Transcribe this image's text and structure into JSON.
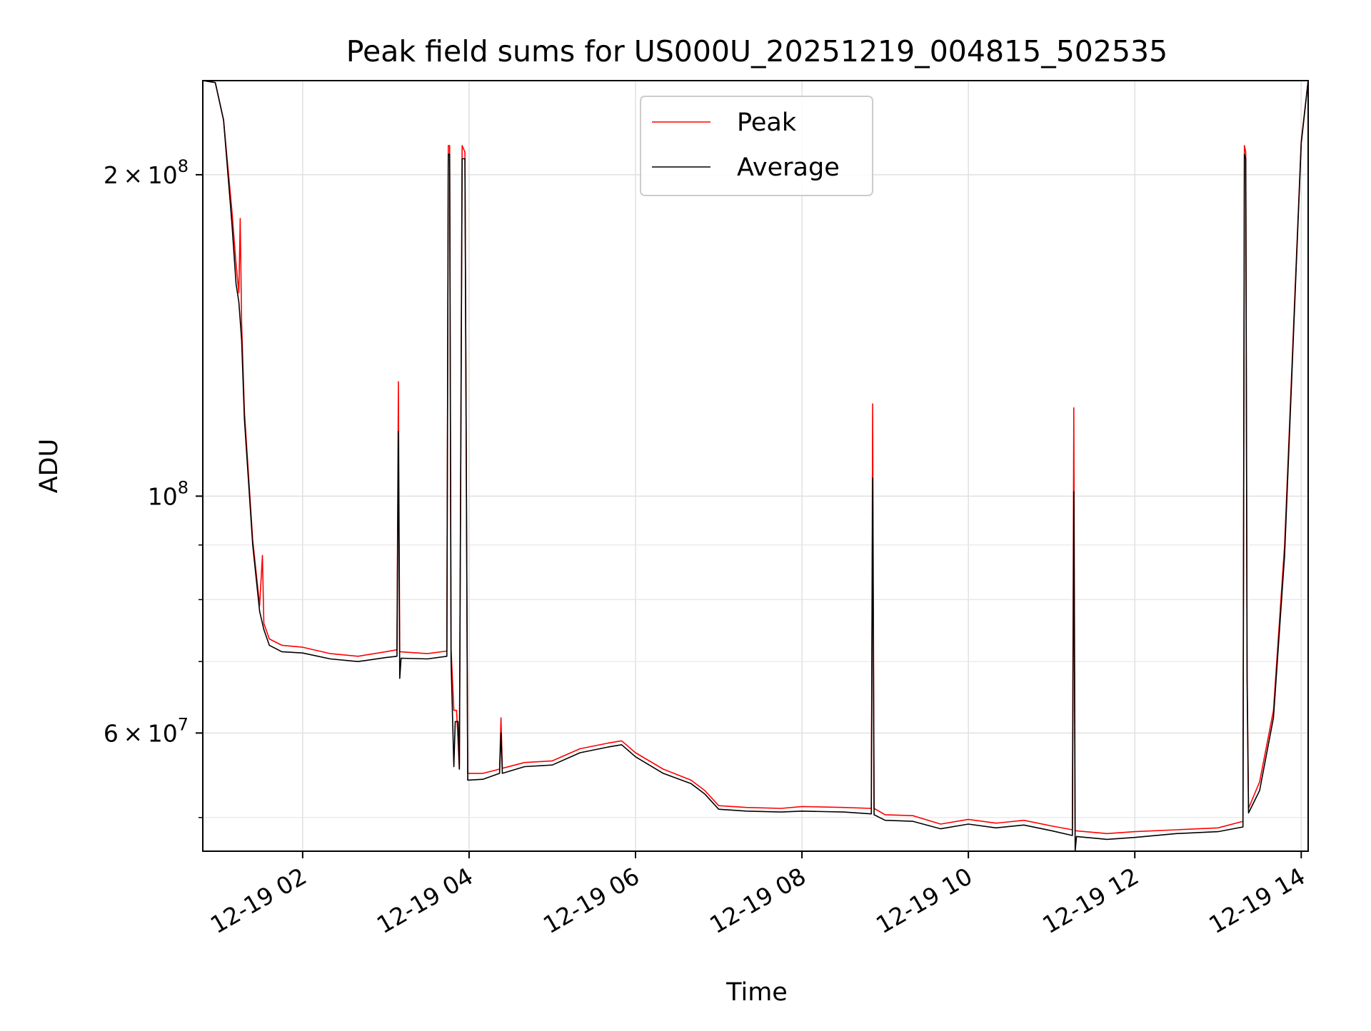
{
  "chart_data": {
    "type": "line",
    "title": "Peak field sums for US000U_20251219_004815_502535",
    "xlabel": "Time",
    "ylabel": "ADU",
    "x_scale": "time",
    "y_scale": "log",
    "xlim": [
      "2025-12-19 00:48",
      "2025-12-19 14:05"
    ],
    "ylim": [
      46500000,
      245000000
    ],
    "grid": true,
    "legend": {
      "position": "upper-center",
      "entries": [
        "Peak",
        "Average"
      ]
    },
    "x_ticks": [
      {
        "value": "2025-12-19 02:00",
        "label": "12-19 02"
      },
      {
        "value": "2025-12-19 04:00",
        "label": "12-19 04"
      },
      {
        "value": "2025-12-19 06:00",
        "label": "12-19 06"
      },
      {
        "value": "2025-12-19 08:00",
        "label": "12-19 08"
      },
      {
        "value": "2025-12-19 10:00",
        "label": "12-19 10"
      },
      {
        "value": "2025-12-19 12:00",
        "label": "12-19 12"
      },
      {
        "value": "2025-12-19 14:00",
        "label": "12-19 14"
      }
    ],
    "y_major_ticks": [
      {
        "value": 100000000,
        "base": "10",
        "exp": "8"
      },
      {
        "value": 200000000,
        "mant": "2",
        "times": "×",
        "base": "10",
        "exp": "8"
      },
      {
        "value": 60000000,
        "mant": "6",
        "times": "×",
        "base": "10",
        "exp": "7"
      }
    ],
    "y_minor_ticks": [
      50000000,
      70000000,
      80000000,
      90000000
    ],
    "series": [
      {
        "name": "Peak",
        "color": "#ff0000",
        "points": [
          [
            "2025-12-19 00:48",
            245000000
          ],
          [
            "2025-12-19 00:57",
            244000000
          ],
          [
            "2025-12-19 01:03",
            225000000
          ],
          [
            "2025-12-19 01:09",
            185000000
          ],
          [
            "2025-12-19 01:12",
            165000000
          ],
          [
            "2025-12-19 01:14",
            155000000
          ],
          [
            "2025-12-19 01:15",
            182000000
          ],
          [
            "2025-12-19 01:16",
            145000000
          ],
          [
            "2025-12-19 01:18",
            120000000
          ],
          [
            "2025-12-19 01:24",
            91000000
          ],
          [
            "2025-12-19 01:29",
            79000000
          ],
          [
            "2025-12-19 01:31",
            88000000
          ],
          [
            "2025-12-19 01:32",
            76000000
          ],
          [
            "2025-12-19 01:36",
            73500000
          ],
          [
            "2025-12-19 01:45",
            72500000
          ],
          [
            "2025-12-19 02:00",
            72200000
          ],
          [
            "2025-12-19 02:20",
            71200000
          ],
          [
            "2025-12-19 02:40",
            70800000
          ],
          [
            "2025-12-19 03:00",
            71500000
          ],
          [
            "2025-12-19 03:08",
            71800000
          ],
          [
            "2025-12-19 03:09",
            128000000
          ],
          [
            "2025-12-19 03:10",
            71500000
          ],
          [
            "2025-12-19 03:30",
            71200000
          ],
          [
            "2025-12-19 03:44",
            71600000
          ],
          [
            "2025-12-19 03:45",
            213000000
          ],
          [
            "2025-12-19 03:46",
            213000000
          ],
          [
            "2025-12-19 03:47",
            72000000
          ],
          [
            "2025-12-19 03:49",
            63000000
          ],
          [
            "2025-12-19 03:51",
            63000000
          ],
          [
            "2025-12-19 03:53",
            55500000
          ],
          [
            "2025-12-19 03:55",
            213000000
          ],
          [
            "2025-12-19 03:57",
            210000000
          ],
          [
            "2025-12-19 03:59",
            55000000
          ],
          [
            "2025-12-19 04:10",
            55000000
          ],
          [
            "2025-12-19 04:22",
            55500000
          ],
          [
            "2025-12-19 04:23",
            62000000
          ],
          [
            "2025-12-19 04:24",
            55600000
          ],
          [
            "2025-12-19 04:40",
            56300000
          ],
          [
            "2025-12-19 05:00",
            56500000
          ],
          [
            "2025-12-19 05:20",
            58000000
          ],
          [
            "2025-12-19 05:40",
            58700000
          ],
          [
            "2025-12-19 05:50",
            59000000
          ],
          [
            "2025-12-19 06:00",
            57500000
          ],
          [
            "2025-12-19 06:20",
            55500000
          ],
          [
            "2025-12-19 06:40",
            54200000
          ],
          [
            "2025-12-19 06:50",
            53000000
          ],
          [
            "2025-12-19 07:00",
            51300000
          ],
          [
            "2025-12-19 07:20",
            51100000
          ],
          [
            "2025-12-19 07:45",
            51000000
          ],
          [
            "2025-12-19 08:00",
            51200000
          ],
          [
            "2025-12-19 08:30",
            51100000
          ],
          [
            "2025-12-19 08:50",
            51000000
          ],
          [
            "2025-12-19 08:51",
            122000000
          ],
          [
            "2025-12-19 08:52",
            51000000
          ],
          [
            "2025-12-19 09:00",
            50300000
          ],
          [
            "2025-12-19 09:20",
            50200000
          ],
          [
            "2025-12-19 09:40",
            49300000
          ],
          [
            "2025-12-19 10:00",
            49800000
          ],
          [
            "2025-12-19 10:20",
            49400000
          ],
          [
            "2025-12-19 10:40",
            49700000
          ],
          [
            "2025-12-19 11:00",
            49100000
          ],
          [
            "2025-12-19 11:15",
            48700000
          ],
          [
            "2025-12-19 11:16",
            121000000
          ],
          [
            "2025-12-19 11:17",
            48600000
          ],
          [
            "2025-12-19 11:40",
            48300000
          ],
          [
            "2025-12-19 12:00",
            48500000
          ],
          [
            "2025-12-19 12:30",
            48700000
          ],
          [
            "2025-12-19 13:00",
            48900000
          ],
          [
            "2025-12-19 13:18",
            49600000
          ],
          [
            "2025-12-19 13:19",
            213000000
          ],
          [
            "2025-12-19 13:20",
            210000000
          ],
          [
            "2025-12-19 13:21",
            68500000
          ],
          [
            "2025-12-19 13:22",
            51000000
          ],
          [
            "2025-12-19 13:30",
            54000000
          ],
          [
            "2025-12-19 13:40",
            63000000
          ],
          [
            "2025-12-19 13:48",
            90000000
          ],
          [
            "2025-12-19 13:55",
            150000000
          ],
          [
            "2025-12-19 14:00",
            215000000
          ],
          [
            "2025-12-19 14:05",
            245000000
          ]
        ]
      },
      {
        "name": "Average",
        "color": "#000000",
        "points": [
          [
            "2025-12-19 00:48",
            245000000
          ],
          [
            "2025-12-19 00:57",
            244000000
          ],
          [
            "2025-12-19 01:03",
            225000000
          ],
          [
            "2025-12-19 01:09",
            180000000
          ],
          [
            "2025-12-19 01:12",
            158000000
          ],
          [
            "2025-12-19 01:14",
            152000000
          ],
          [
            "2025-12-19 01:16",
            140000000
          ],
          [
            "2025-12-19 01:18",
            118000000
          ],
          [
            "2025-12-19 01:24",
            90000000
          ],
          [
            "2025-12-19 01:29",
            78000000
          ],
          [
            "2025-12-19 01:32",
            75000000
          ],
          [
            "2025-12-19 01:36",
            72500000
          ],
          [
            "2025-12-19 01:45",
            71500000
          ],
          [
            "2025-12-19 02:00",
            71300000
          ],
          [
            "2025-12-19 02:20",
            70400000
          ],
          [
            "2025-12-19 02:40",
            70000000
          ],
          [
            "2025-12-19 03:00",
            70600000
          ],
          [
            "2025-12-19 03:08",
            70800000
          ],
          [
            "2025-12-19 03:09",
            115000000
          ],
          [
            "2025-12-19 03:10",
            67500000
          ],
          [
            "2025-12-19 03:11",
            70500000
          ],
          [
            "2025-12-19 03:30",
            70400000
          ],
          [
            "2025-12-19 03:44",
            70800000
          ],
          [
            "2025-12-19 03:45",
            209000000
          ],
          [
            "2025-12-19 03:46",
            209000000
          ],
          [
            "2025-12-19 03:47",
            70000000
          ],
          [
            "2025-12-19 03:49",
            55800000
          ],
          [
            "2025-12-19 03:50",
            61500000
          ],
          [
            "2025-12-19 03:52",
            61500000
          ],
          [
            "2025-12-19 03:53",
            55500000
          ],
          [
            "2025-12-19 03:55",
            207000000
          ],
          [
            "2025-12-19 03:57",
            207000000
          ],
          [
            "2025-12-19 03:59",
            54200000
          ],
          [
            "2025-12-19 04:10",
            54300000
          ],
          [
            "2025-12-19 04:22",
            55000000
          ],
          [
            "2025-12-19 04:23",
            60000000
          ],
          [
            "2025-12-19 04:24",
            55000000
          ],
          [
            "2025-12-19 04:40",
            55800000
          ],
          [
            "2025-12-19 05:00",
            56000000
          ],
          [
            "2025-12-19 05:20",
            57500000
          ],
          [
            "2025-12-19 05:40",
            58200000
          ],
          [
            "2025-12-19 05:50",
            58500000
          ],
          [
            "2025-12-19 06:00",
            57000000
          ],
          [
            "2025-12-19 06:20",
            55000000
          ],
          [
            "2025-12-19 06:40",
            53800000
          ],
          [
            "2025-12-19 06:50",
            52600000
          ],
          [
            "2025-12-19 07:00",
            50900000
          ],
          [
            "2025-12-19 07:20",
            50700000
          ],
          [
            "2025-12-19 07:45",
            50600000
          ],
          [
            "2025-12-19 08:00",
            50700000
          ],
          [
            "2025-12-19 08:30",
            50600000
          ],
          [
            "2025-12-19 08:50",
            50400000
          ],
          [
            "2025-12-19 08:51",
            104000000
          ],
          [
            "2025-12-19 08:52",
            50300000
          ],
          [
            "2025-12-19 09:00",
            49700000
          ],
          [
            "2025-12-19 09:20",
            49600000
          ],
          [
            "2025-12-19 09:40",
            48800000
          ],
          [
            "2025-12-19 10:00",
            49300000
          ],
          [
            "2025-12-19 10:20",
            48900000
          ],
          [
            "2025-12-19 10:40",
            49200000
          ],
          [
            "2025-12-19 11:00",
            48600000
          ],
          [
            "2025-12-19 11:15",
            48100000
          ],
          [
            "2025-12-19 11:16",
            101000000
          ],
          [
            "2025-12-19 11:17",
            46500000
          ],
          [
            "2025-12-19 11:18",
            48000000
          ],
          [
            "2025-12-19 11:40",
            47700000
          ],
          [
            "2025-12-19 12:00",
            47900000
          ],
          [
            "2025-12-19 12:30",
            48300000
          ],
          [
            "2025-12-19 13:00",
            48500000
          ],
          [
            "2025-12-19 13:18",
            49000000
          ],
          [
            "2025-12-19 13:19",
            209000000
          ],
          [
            "2025-12-19 13:20",
            207000000
          ],
          [
            "2025-12-19 13:21",
            67000000
          ],
          [
            "2025-12-19 13:22",
            50500000
          ],
          [
            "2025-12-19 13:30",
            53000000
          ],
          [
            "2025-12-19 13:40",
            62000000
          ],
          [
            "2025-12-19 13:48",
            88000000
          ],
          [
            "2025-12-19 13:55",
            148000000
          ],
          [
            "2025-12-19 14:00",
            214000000
          ],
          [
            "2025-12-19 14:05",
            245000000
          ]
        ]
      }
    ]
  }
}
